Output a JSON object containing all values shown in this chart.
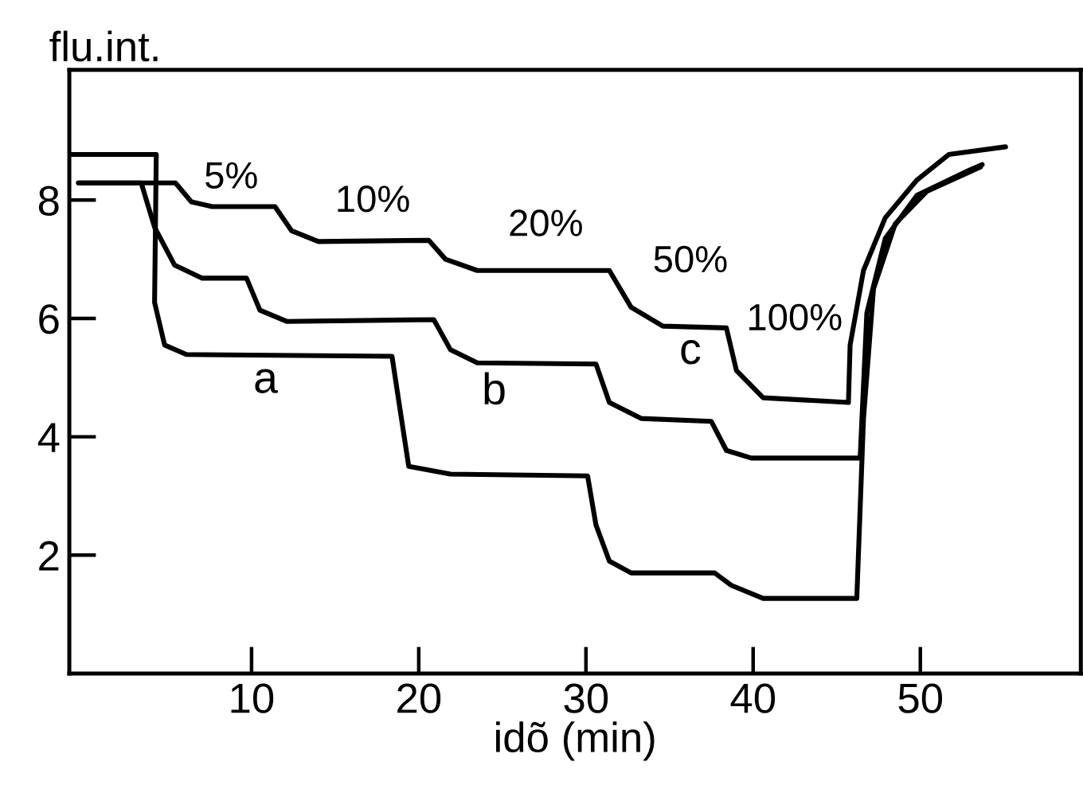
{
  "chart_data": {
    "type": "line",
    "xlabel": "idõ (min)",
    "ylabel": "flu.int.",
    "xlim": [
      -0.9,
      59.6
    ],
    "ylim": [
      0,
      10.2
    ],
    "xticks": [
      10,
      20,
      30,
      40,
      50
    ],
    "yticks": [
      2,
      4,
      6,
      8
    ],
    "grid": false,
    "legend": false,
    "marker": "none",
    "line_style": "solid",
    "series": [
      {
        "color": "#000000",
        "x": [
          -0.8,
          4.3,
          4.2,
          4.8,
          6.1,
          18.4,
          18.7,
          19.4,
          21.9,
          30.1,
          30.6,
          31.4,
          32.7,
          37.7,
          38.7,
          40.6,
          46.2,
          46.6,
          47.2,
          48.5,
          50.4,
          53.6
        ],
        "values": [
          8.77,
          8.77,
          6.27,
          5.55,
          5.39,
          5.36,
          4.8,
          3.5,
          3.37,
          3.34,
          2.51,
          1.9,
          1.7,
          1.7,
          1.49,
          1.27,
          1.27,
          4.3,
          6.5,
          7.6,
          8.15,
          8.56
        ]
      },
      {
        "color": "#000000",
        "x": [
          -0.35,
          3.4,
          4.2,
          5.4,
          7.05,
          9.7,
          10.5,
          12.1,
          20.9,
          21.9,
          23.5,
          30.6,
          31.4,
          33.3,
          37.5,
          38.4,
          39.9,
          46.4,
          46.8,
          47.9,
          49.8,
          52.9,
          53.7
        ],
        "values": [
          8.29,
          8.29,
          7.54,
          6.9,
          6.68,
          6.68,
          6.14,
          5.95,
          5.98,
          5.47,
          5.25,
          5.23,
          4.58,
          4.31,
          4.26,
          3.77,
          3.64,
          3.64,
          6.09,
          7.35,
          8.08,
          8.5,
          8.6
        ]
      },
      {
        "color": "#000000",
        "x": [
          -0.35,
          5.45,
          6.4,
          7.65,
          11.4,
          12.4,
          14.0,
          20.6,
          21.6,
          23.5,
          31.4,
          32.7,
          34.6,
          38.4,
          39.0,
          40.6,
          45.7,
          45.8,
          46.6,
          47.9,
          49.8,
          51.7,
          55.1
        ],
        "values": [
          8.29,
          8.29,
          7.97,
          7.89,
          7.89,
          7.48,
          7.3,
          7.32,
          7.0,
          6.81,
          6.81,
          6.19,
          5.87,
          5.84,
          5.12,
          4.66,
          4.58,
          5.55,
          6.81,
          7.7,
          8.34,
          8.77,
          8.9
        ]
      }
    ],
    "annotations": [
      "5%",
      "10%",
      "20%",
      "50%",
      "100%",
      "a",
      "b",
      "c"
    ]
  }
}
